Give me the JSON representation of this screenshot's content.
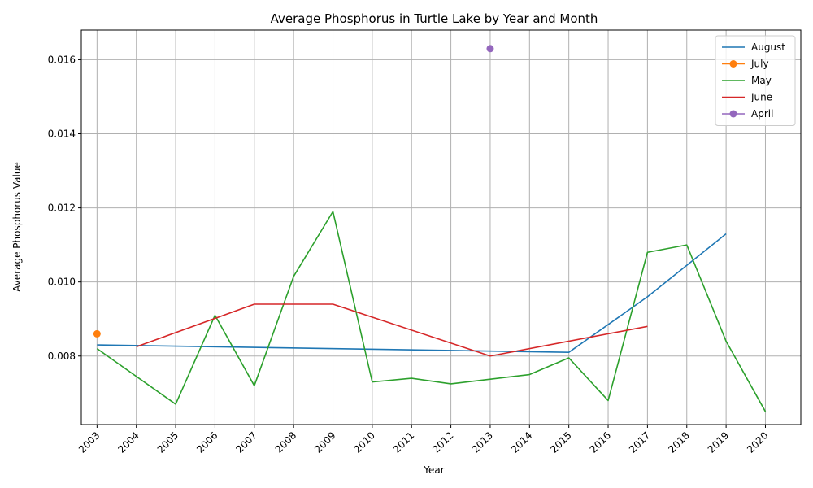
{
  "chart_data": {
    "type": "line",
    "title": "Average Phosphorus in Turtle Lake by Year and Month",
    "xlabel": "Year",
    "ylabel": "Average Phosphorus Value",
    "xlim": [
      2002.6,
      2020.9
    ],
    "ylim": [
      0.00615,
      0.0168
    ],
    "x_ticks": [
      2003,
      2004,
      2005,
      2006,
      2007,
      2008,
      2009,
      2010,
      2011,
      2012,
      2013,
      2014,
      2015,
      2016,
      2017,
      2018,
      2019,
      2020
    ],
    "y_ticks": [
      0.008,
      0.01,
      0.012,
      0.014,
      0.016
    ],
    "y_tick_labels": [
      "0.008",
      "0.010",
      "0.012",
      "0.014",
      "0.016"
    ],
    "grid": true,
    "legend_position": "top-right",
    "series": [
      {
        "name": "August",
        "color": "#1f77b4",
        "marker": false,
        "points": [
          [
            2003,
            0.0083
          ],
          [
            2015,
            0.0081
          ],
          [
            2017,
            0.0096
          ],
          [
            2019,
            0.0113
          ]
        ]
      },
      {
        "name": "July",
        "color": "#ff7f0e",
        "marker": true,
        "points": [
          [
            2003,
            0.0086
          ]
        ]
      },
      {
        "name": "May",
        "color": "#2ca02c",
        "marker": false,
        "points": [
          [
            2003,
            0.0082
          ],
          [
            2005,
            0.0067
          ],
          [
            2006,
            0.0091
          ],
          [
            2007,
            0.0072
          ],
          [
            2008,
            0.01015
          ],
          [
            2009,
            0.0119
          ],
          [
            2010,
            0.0073
          ],
          [
            2011,
            0.0074
          ],
          [
            2012,
            0.00725
          ],
          [
            2014,
            0.0075
          ],
          [
            2015,
            0.00795
          ],
          [
            2016,
            0.0068
          ],
          [
            2017,
            0.0108
          ],
          [
            2018,
            0.011
          ],
          [
            2019,
            0.0084
          ],
          [
            2020,
            0.0065
          ]
        ]
      },
      {
        "name": "June",
        "color": "#d62728",
        "marker": false,
        "points": [
          [
            2004,
            0.00825
          ],
          [
            2007,
            0.0094
          ],
          [
            2009,
            0.0094
          ],
          [
            2013,
            0.008
          ],
          [
            2017,
            0.0088
          ]
        ]
      },
      {
        "name": "April",
        "color": "#9467bd",
        "marker": true,
        "points": [
          [
            2013,
            0.0163
          ]
        ]
      }
    ]
  }
}
